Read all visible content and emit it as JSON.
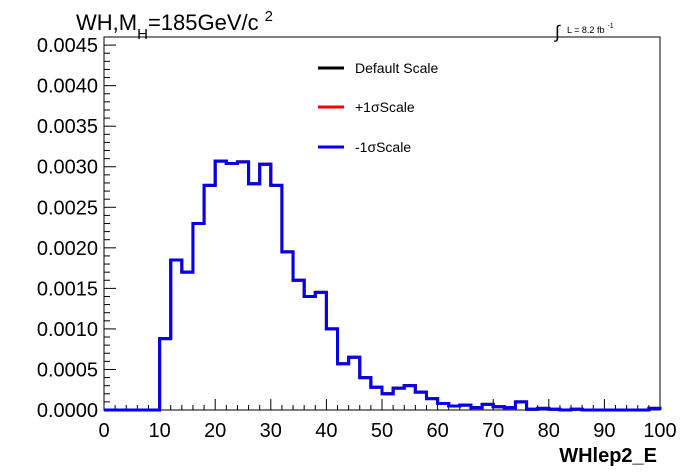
{
  "chart_data": {
    "type": "line",
    "title_main": "WH,M",
    "title_sub": "H",
    "title_rest": "=185GeV/c",
    "title_sup": "2",
    "lumi_prefix": "∫",
    "lumi_text": "L = 8.2 fb",
    "lumi_sup": "-1",
    "xlabel": "WHlep2_E",
    "ylabel": "",
    "xlim": [
      0,
      100
    ],
    "ylim": [
      0,
      0.0046
    ],
    "x_ticks": [
      "0",
      "10",
      "20",
      "30",
      "40",
      "50",
      "60",
      "70",
      "80",
      "90",
      "100"
    ],
    "y_ticks": [
      "0.0000",
      "0.0005",
      "0.0010",
      "0.0015",
      "0.0020",
      "0.0025",
      "0.0030",
      "0.0035",
      "0.0040",
      "0.0045"
    ],
    "bin_width": 2,
    "bin_edges_start": 0,
    "series": [
      {
        "name": "Default Scale",
        "color": "#000000",
        "values": [
          0,
          0,
          0,
          0,
          0,
          0.00088,
          0.00185,
          0.0017,
          0.0023,
          0.00277,
          0.00307,
          0.00304,
          0.00306,
          0.00279,
          0.00303,
          0.00277,
          0.00195,
          0.0016,
          0.0014,
          0.00145,
          0.001,
          0.00057,
          0.00065,
          0.0004,
          0.00028,
          0.0002,
          0.00027,
          0.0003,
          0.00022,
          0.00014,
          8e-05,
          5e-05,
          6e-05,
          3e-05,
          7e-05,
          4e-05,
          3e-05,
          0.0001,
          1e-05,
          2e-05,
          1e-05,
          0,
          1e-05,
          0,
          0,
          0,
          0,
          0,
          0,
          2e-05
        ]
      },
      {
        "name": "+1σScale",
        "color": "#ff0000",
        "values": [
          0,
          0,
          0,
          0,
          0,
          0.00088,
          0.00185,
          0.0017,
          0.0023,
          0.00277,
          0.00307,
          0.00304,
          0.00306,
          0.00279,
          0.00303,
          0.00277,
          0.00195,
          0.0016,
          0.0014,
          0.00145,
          0.001,
          0.00057,
          0.00065,
          0.0004,
          0.00028,
          0.0002,
          0.00027,
          0.0003,
          0.00022,
          0.00014,
          8e-05,
          5e-05,
          6e-05,
          3e-05,
          7e-05,
          4e-05,
          3e-05,
          0.0001,
          1e-05,
          2e-05,
          1e-05,
          0,
          1e-05,
          0,
          0,
          0,
          0,
          0,
          0,
          2e-05
        ]
      },
      {
        "name": "-1σScale",
        "color": "#0000ee",
        "values": [
          0,
          0,
          0,
          0,
          0,
          0.00088,
          0.00185,
          0.0017,
          0.0023,
          0.00277,
          0.00307,
          0.00304,
          0.00306,
          0.00279,
          0.00303,
          0.00277,
          0.00195,
          0.0016,
          0.0014,
          0.00145,
          0.001,
          0.00057,
          0.00065,
          0.0004,
          0.00028,
          0.0002,
          0.00027,
          0.0003,
          0.00022,
          0.00014,
          8e-05,
          5e-05,
          6e-05,
          3e-05,
          7e-05,
          4e-05,
          3e-05,
          0.0001,
          1e-05,
          2e-05,
          1e-05,
          0,
          1e-05,
          0,
          0,
          0,
          0,
          0,
          0,
          2e-05
        ]
      }
    ],
    "legend": {
      "position": "top-center",
      "entries": [
        "Default Scale",
        "+1σScale",
        "-1σScale"
      ]
    },
    "grid": false
  }
}
